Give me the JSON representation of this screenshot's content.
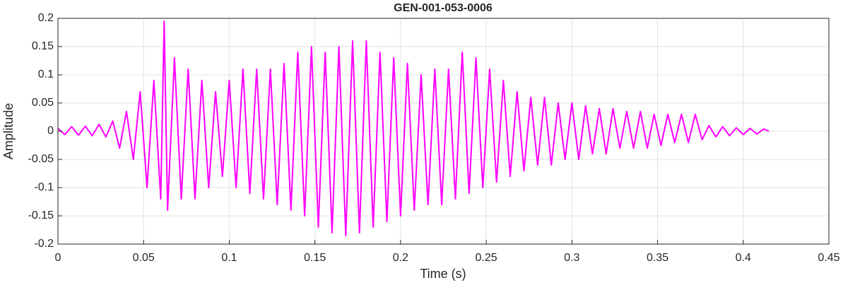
{
  "chart_data": {
    "type": "line",
    "title": "GEN-001-053-0006",
    "xlabel": "Time (s)",
    "ylabel": "Amplitude",
    "color": "#ff00ff",
    "grid": true,
    "xlim": [
      0,
      0.45
    ],
    "ylim": [
      -0.2,
      0.2
    ],
    "xticks": [
      0,
      0.05,
      0.1,
      0.15,
      0.2,
      0.25,
      0.3,
      0.35,
      0.4,
      0.45
    ],
    "yticks": [
      -0.2,
      -0.15,
      -0.1,
      -0.05,
      0,
      0.05,
      0.1,
      0.15,
      0.2
    ],
    "x": [
      0,
      0.004,
      0.008,
      0.012,
      0.016,
      0.02,
      0.024,
      0.028,
      0.032,
      0.036,
      0.04,
      0.044,
      0.048,
      0.052,
      0.056,
      0.06,
      0.062,
      0.064,
      0.068,
      0.072,
      0.076,
      0.08,
      0.084,
      0.088,
      0.092,
      0.096,
      0.1,
      0.104,
      0.108,
      0.112,
      0.116,
      0.12,
      0.124,
      0.128,
      0.132,
      0.136,
      0.14,
      0.144,
      0.148,
      0.152,
      0.156,
      0.16,
      0.164,
      0.168,
      0.172,
      0.176,
      0.18,
      0.184,
      0.188,
      0.192,
      0.196,
      0.2,
      0.204,
      0.208,
      0.212,
      0.216,
      0.22,
      0.224,
      0.228,
      0.232,
      0.236,
      0.24,
      0.244,
      0.248,
      0.252,
      0.256,
      0.26,
      0.264,
      0.268,
      0.272,
      0.276,
      0.28,
      0.284,
      0.288,
      0.292,
      0.296,
      0.3,
      0.304,
      0.308,
      0.312,
      0.316,
      0.32,
      0.324,
      0.328,
      0.332,
      0.336,
      0.34,
      0.344,
      0.348,
      0.352,
      0.356,
      0.36,
      0.364,
      0.368,
      0.372,
      0.376,
      0.38,
      0.384,
      0.388,
      0.392,
      0.396,
      0.4,
      0.404,
      0.408,
      0.412,
      0.415
    ],
    "values": [
      0.005,
      -0.006,
      0.008,
      -0.007,
      0.009,
      -0.008,
      0.012,
      -0.01,
      0.018,
      -0.03,
      0.035,
      -0.05,
      0.07,
      -0.1,
      0.09,
      -0.12,
      0.195,
      -0.14,
      0.13,
      -0.12,
      0.11,
      -0.12,
      0.09,
      -0.1,
      0.07,
      -0.08,
      0.09,
      -0.1,
      0.11,
      -0.11,
      0.11,
      -0.12,
      0.11,
      -0.13,
      0.12,
      -0.14,
      0.14,
      -0.15,
      0.15,
      -0.17,
      0.14,
      -0.18,
      0.15,
      -0.185,
      0.16,
      -0.18,
      0.16,
      -0.17,
      0.14,
      -0.16,
      0.13,
      -0.15,
      0.12,
      -0.14,
      0.1,
      -0.13,
      0.11,
      -0.13,
      0.11,
      -0.12,
      0.14,
      -0.11,
      0.13,
      -0.1,
      0.11,
      -0.09,
      0.09,
      -0.08,
      0.07,
      -0.07,
      0.06,
      -0.06,
      0.06,
      -0.06,
      0.05,
      -0.05,
      0.05,
      -0.05,
      0.045,
      -0.04,
      0.04,
      -0.04,
      0.04,
      -0.03,
      0.035,
      -0.03,
      0.035,
      -0.03,
      0.03,
      -0.025,
      0.03,
      -0.02,
      0.03,
      -0.02,
      0.03,
      -0.015,
      0.01,
      -0.01,
      0.008,
      -0.008,
      0.006,
      -0.006,
      0.005,
      -0.005,
      0.004,
      0
    ]
  }
}
